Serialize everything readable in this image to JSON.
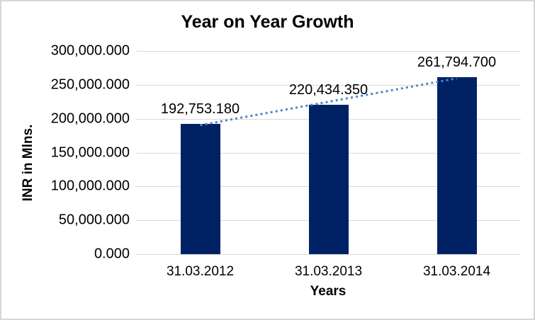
{
  "chart": {
    "title": "Year on Year Growth",
    "y_axis_title": "INR in Mlns.",
    "x_axis_title": "Years"
  },
  "chart_data": {
    "type": "bar",
    "title": "Year on Year Growth",
    "categories": [
      "31.03.2012",
      "31.03.2013",
      "31.03.2014"
    ],
    "values": [
      192753.18,
      220434.35,
      261794.7
    ],
    "data_labels": [
      "192,753.180",
      "220,434.350",
      "261,794.700"
    ],
    "xlabel": "Years",
    "ylabel": "INR in Mlns.",
    "ylim": [
      0,
      300000
    ],
    "ytick_interval": 50000,
    "ytick_labels": [
      "0.000",
      "50,000.000",
      "100,000.000",
      "150,000.000",
      "200,000.000",
      "250,000.000",
      "300,000.000"
    ],
    "grid": true,
    "legend": "none",
    "bar_color": "#002264",
    "gridline_color": "#d9d9d9",
    "trendline": {
      "type": "linear",
      "style": "dotted",
      "color": "#4e86c8"
    }
  }
}
